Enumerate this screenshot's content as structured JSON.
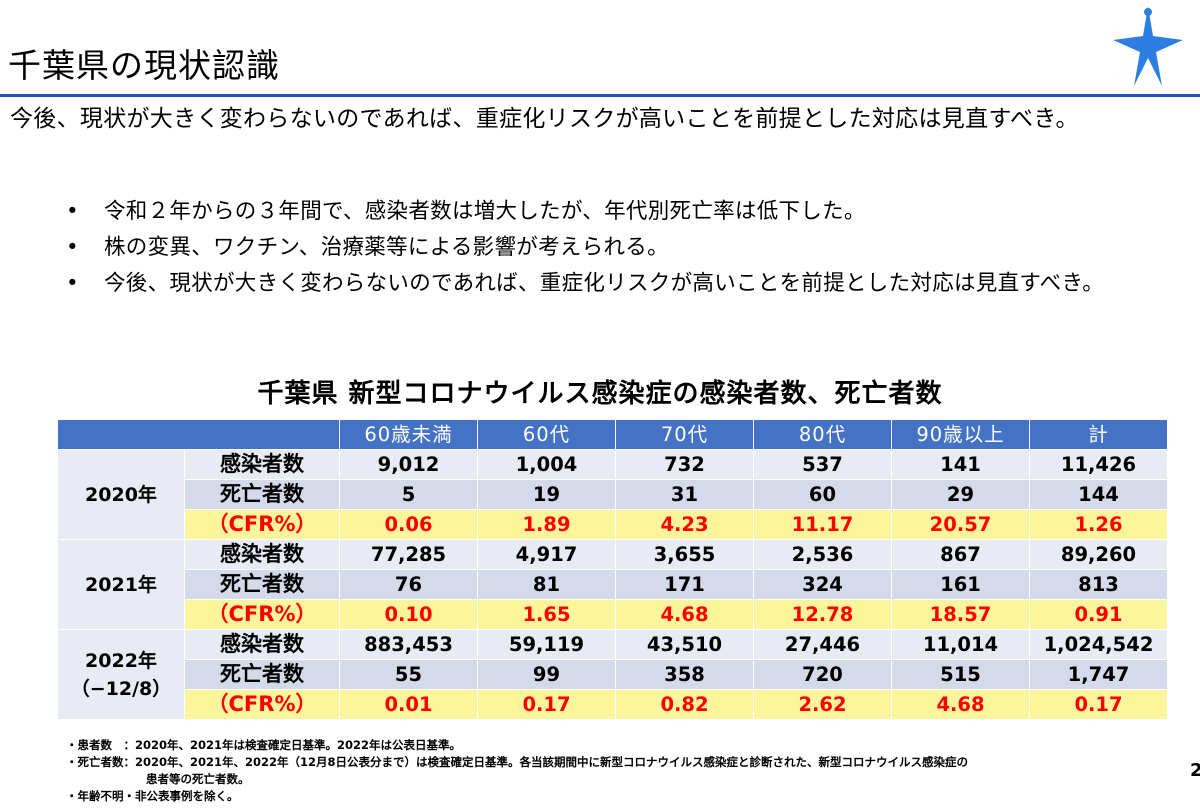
{
  "header": {
    "title": "千葉県の現状認識",
    "subtitle": "今後、現状が大きく変わらないのであれば、重症化リスクが高いことを前提とした対応は見直すべき。"
  },
  "bullets": [
    "令和２年からの３年間で、感染者数は増大したが、年代別死亡率は低下した。",
    "株の変異、ワクチン、治療薬等による影響が考えられる。",
    "今後、現状が大きく変わらないのであれば、重症化リスクが高いことを前提とした対応は見直すべき。"
  ],
  "bullet_mark": "•",
  "table": {
    "title": "千葉県 新型コロナウイルス感染症の感染者数、死亡者数",
    "headers": [
      "60歳未満",
      "60代",
      "70代",
      "80代",
      "90歳以上",
      "計"
    ],
    "years": [
      {
        "label": "2020年",
        "sublabel": "",
        "rows": [
          {
            "label": "感染者数",
            "values": [
              "9,012",
              "1,004",
              "732",
              "537",
              "141",
              "11,426"
            ]
          },
          {
            "label": "死亡者数",
            "values": [
              "5",
              "19",
              "31",
              "60",
              "29",
              "144"
            ]
          },
          {
            "label": "（CFR%）",
            "values": [
              "0.06",
              "1.89",
              "4.23",
              "11.17",
              "20.57",
              "1.26"
            ]
          }
        ]
      },
      {
        "label": "2021年",
        "sublabel": "",
        "rows": [
          {
            "label": "感染者数",
            "values": [
              "77,285",
              "4,917",
              "3,655",
              "2,536",
              "867",
              "89,260"
            ]
          },
          {
            "label": "死亡者数",
            "values": [
              "76",
              "81",
              "171",
              "324",
              "161",
              "813"
            ]
          },
          {
            "label": "（CFR%）",
            "values": [
              "0.10",
              "1.65",
              "4.68",
              "12.78",
              "18.57",
              "0.91"
            ]
          }
        ]
      },
      {
        "label": "2022年",
        "sublabel": "（−12/8）",
        "rows": [
          {
            "label": "感染者数",
            "values": [
              "883,453",
              "59,119",
              "43,510",
              "27,446",
              "11,014",
              "1,024,542"
            ]
          },
          {
            "label": "死亡者数",
            "values": [
              "55",
              "99",
              "358",
              "720",
              "515",
              "1,747"
            ]
          },
          {
            "label": "（CFR%）",
            "values": [
              "0.01",
              "0.17",
              "0.82",
              "2.62",
              "4.68",
              "0.17"
            ]
          }
        ]
      }
    ]
  },
  "notes": [
    "・患者数　：2020年、2021年は検査確定日基準。2022年は公表日基準。",
    "・死亡者数：2020年、2021年、2022年（12月8日公表分まで）は検査確定日基準。各当該期間中に新型コロナウイルス感染症と診断された、新型コロナウイルス感染症の",
    "患者等の死亡者数。",
    "・年齢不明・非公表事例を除く。"
  ],
  "page_number": "2",
  "colors": {
    "header_blue": "#4472c4",
    "logo_blue": "#2c7fe0",
    "cfr_highlight": "#fdf59c",
    "cfr_text": "#ff0000"
  },
  "logo_icon": "chiba-prefecture-emblem-icon"
}
